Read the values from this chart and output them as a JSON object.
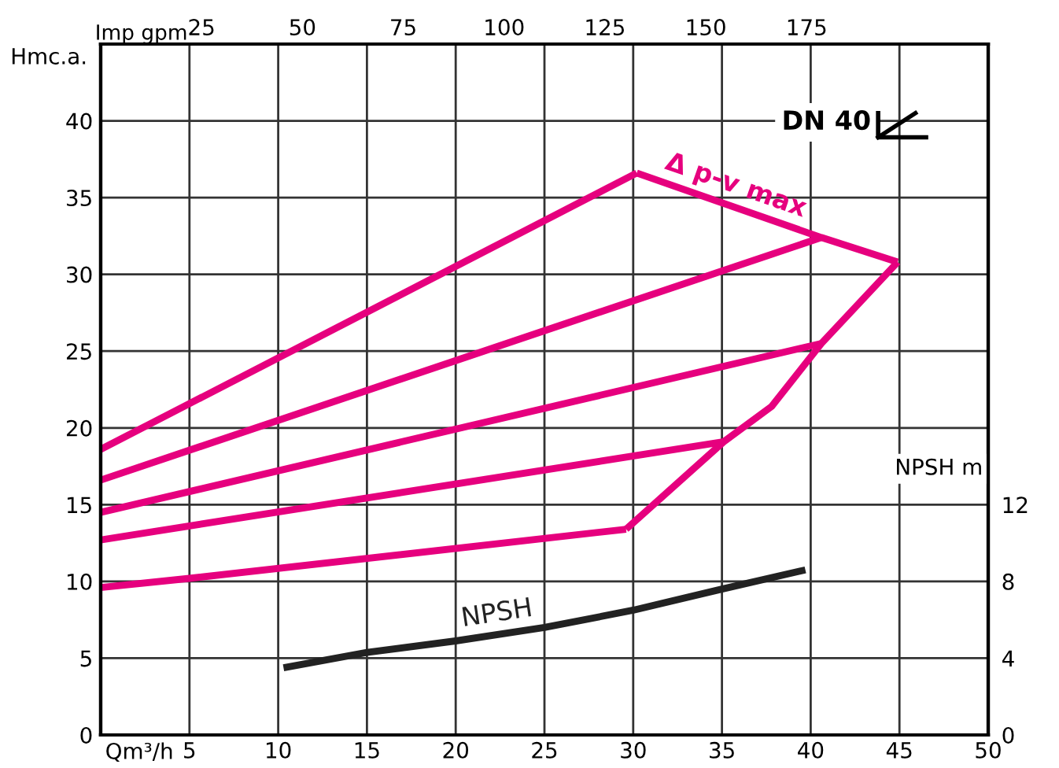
{
  "chart_data": {
    "type": "line",
    "xlabel": "Qm³/h",
    "ylabel": "Hmc.a.",
    "y2label": "NPSH m",
    "x2label": "Imp gpm",
    "xlim": [
      0,
      50
    ],
    "xticks": [
      5,
      10,
      15,
      20,
      25,
      30,
      35,
      40,
      45,
      50
    ],
    "ylim": [
      0,
      45
    ],
    "yticks": [
      0,
      5,
      10,
      15,
      20,
      25,
      30,
      35,
      40
    ],
    "y2lim": [
      0,
      36
    ],
    "y2ticks": [
      0,
      4,
      8,
      12
    ],
    "x2lim": [
      0,
      220
    ],
    "x2ticks": [
      25,
      50,
      75,
      100,
      125,
      150,
      175
    ],
    "grid": true,
    "legend": false,
    "marker": "none",
    "line_style": "solid",
    "annotations": [
      "DN 40"
    ],
    "series": [
      {
        "color": "#e6007e",
        "x": [
          0,
          30.2
        ],
        "values": [
          18.6,
          36.6
        ]
      },
      {
        "color": "#e6007e",
        "x": [
          0,
          40.6
        ],
        "values": [
          16.6,
          32.4
        ]
      },
      {
        "color": "#e6007e",
        "x": [
          0,
          40.6
        ],
        "values": [
          14.5,
          25.5
        ]
      },
      {
        "color": "#e6007e",
        "x": [
          0,
          35.1
        ],
        "values": [
          12.7,
          19.1
        ]
      },
      {
        "color": "#e6007e",
        "x": [
          0,
          5,
          29.6
        ],
        "values": [
          9.6,
          10.2,
          13.4
        ]
      },
      {
        "name": "Δ p-v max",
        "color": "#e6007e",
        "x": [
          30.2,
          40.6,
          44.9
        ],
        "values": [
          36.6,
          32.4,
          30.8
        ]
      },
      {
        "color": "#e6007e",
        "x": [
          29.6,
          35.1,
          37.8,
          40.6,
          44.9
        ],
        "values": [
          13.4,
          19.1,
          21.4,
          25.5,
          30.8
        ]
      },
      {
        "name": "NPSH",
        "color": "#222222",
        "axis": "y2",
        "x": [
          10.3,
          15,
          20,
          25,
          30,
          35,
          39.7
        ],
        "values": [
          3.5,
          4.3,
          4.9,
          5.6,
          6.5,
          7.6,
          8.6
        ]
      }
    ]
  }
}
